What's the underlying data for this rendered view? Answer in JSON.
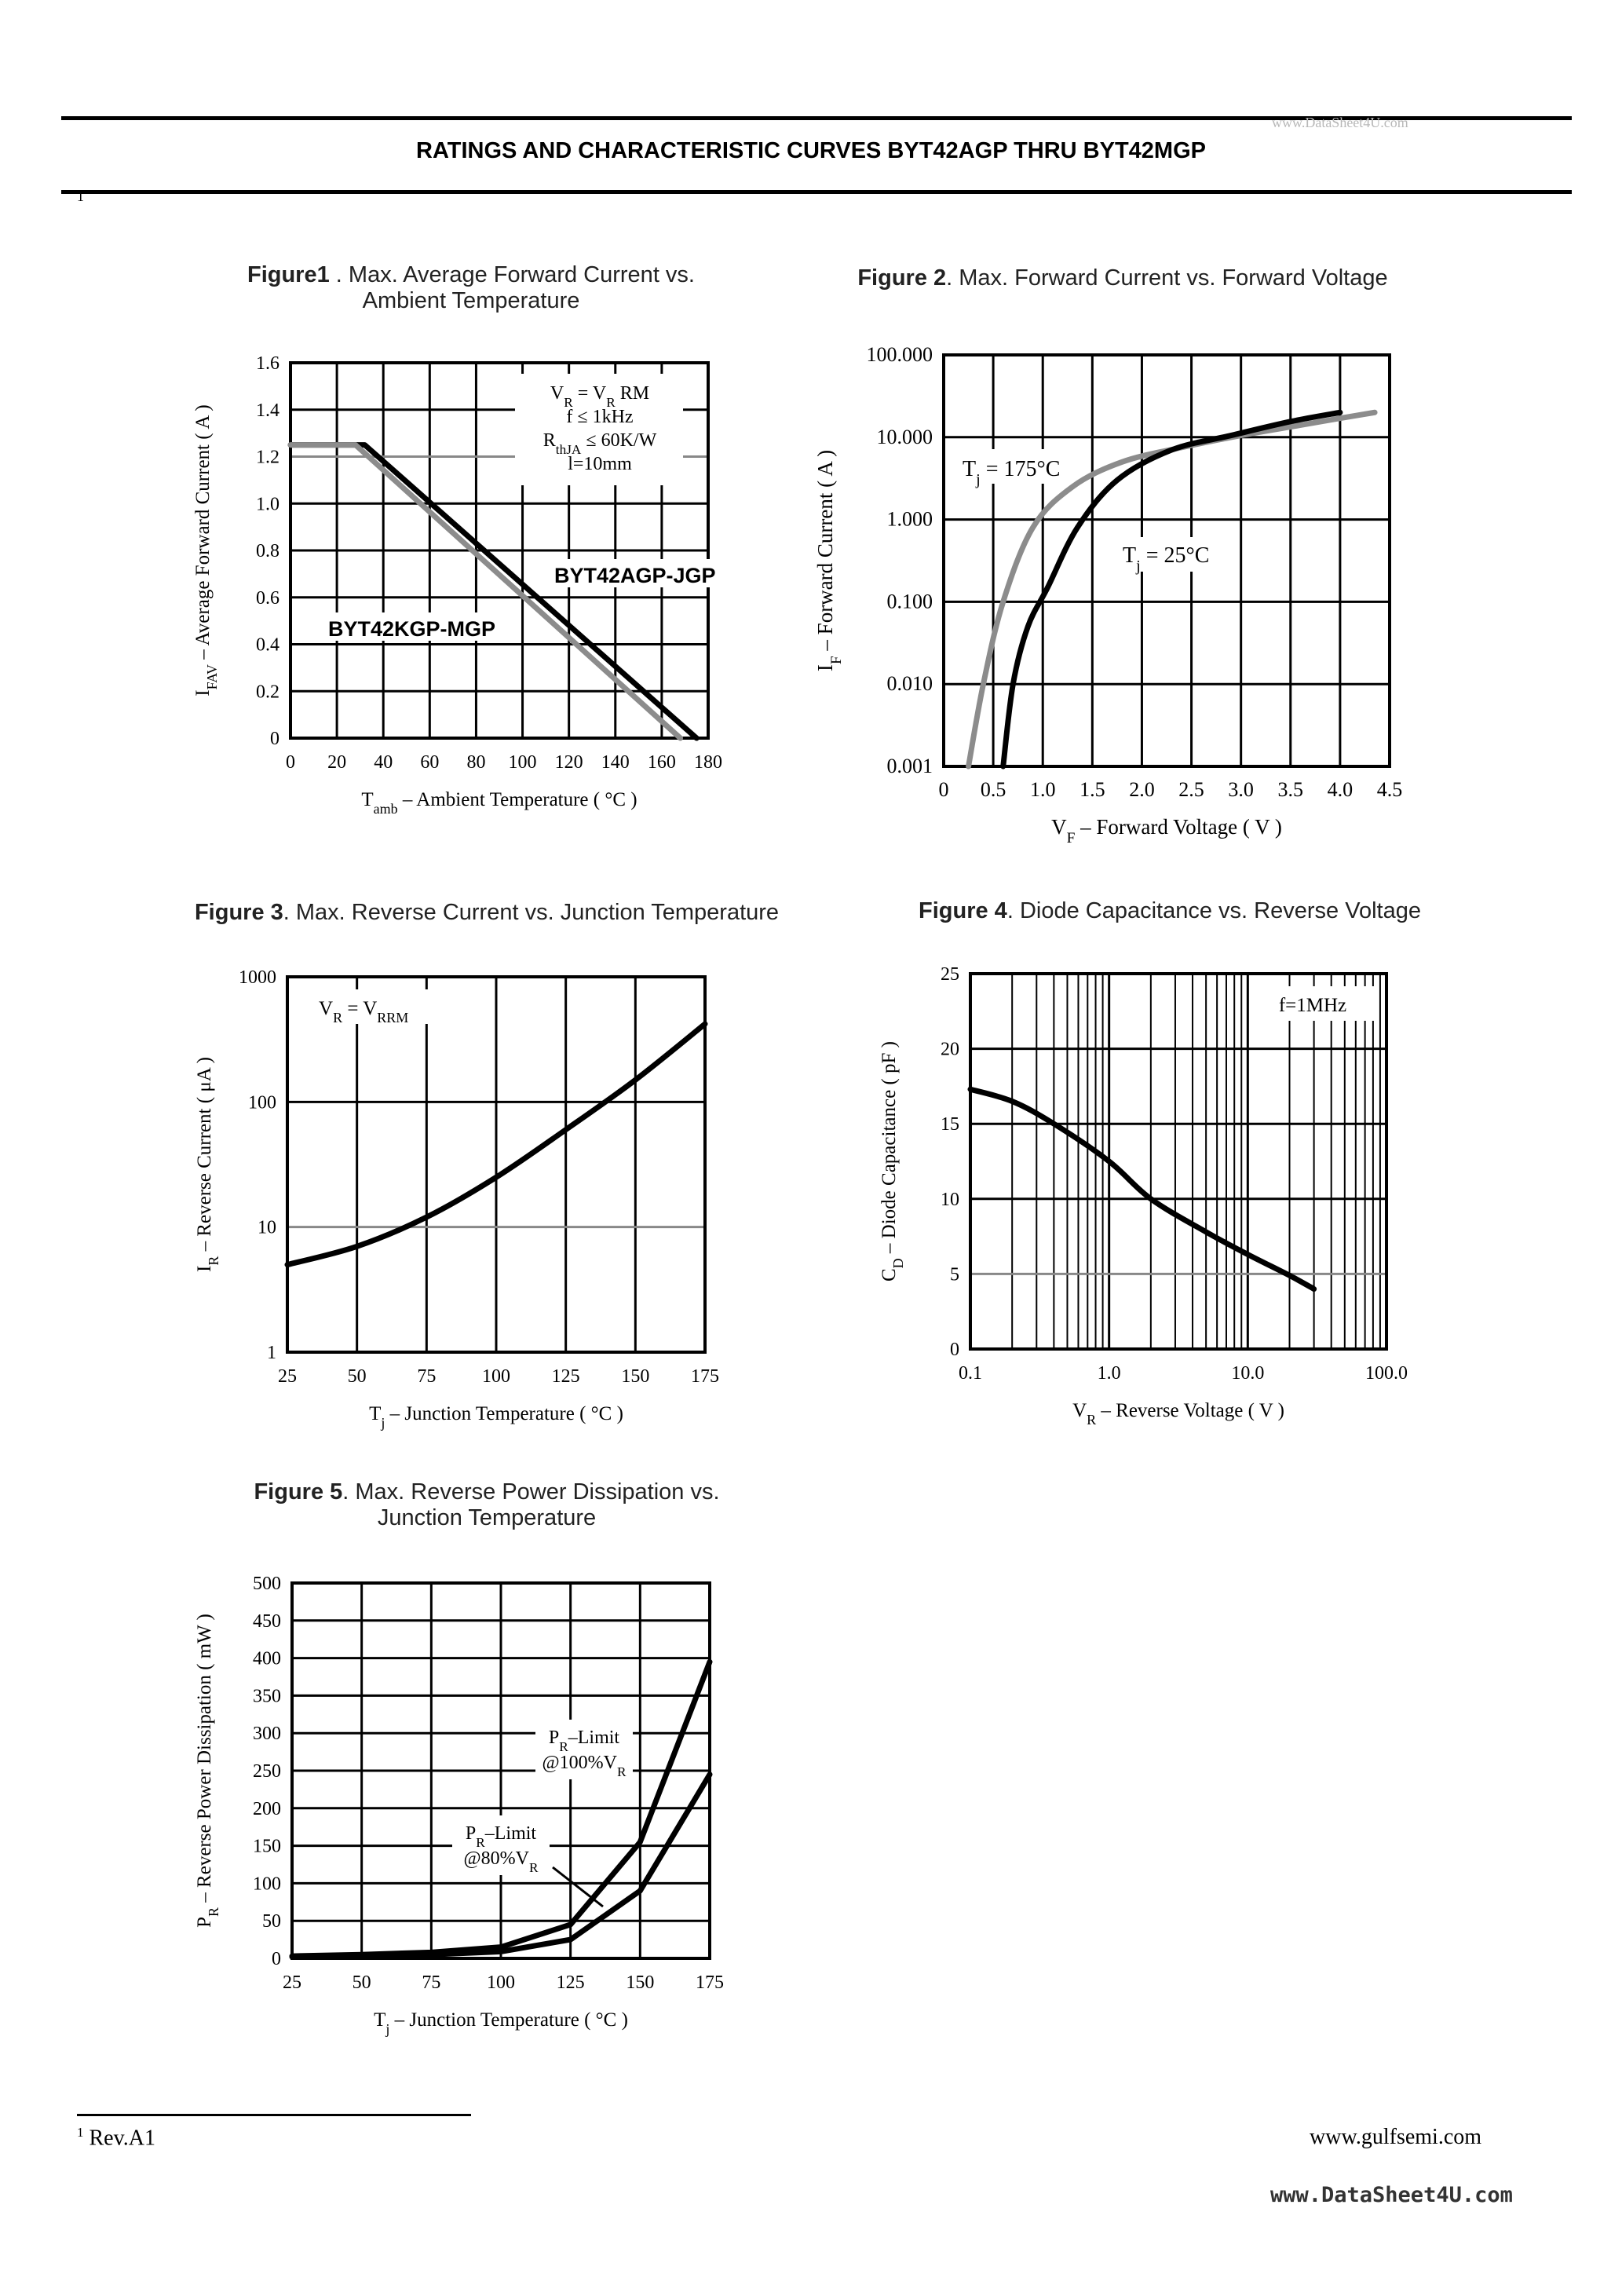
{
  "header": {
    "title": "RATINGS AND CHARACTERISTIC CURVES BYT42AGP THRU BYT42MGP",
    "watermark": "www.DataSheet4U.com",
    "page_marker": "1"
  },
  "footer": {
    "footnote_mark": "1",
    "footnote_text": "Rev.A1",
    "site": "www.gulfsemi.com",
    "watermark": "www.DataSheet4U.com"
  },
  "figures": {
    "fig1": {
      "num": "Figure1",
      "line1": ". Max. Average Forward Current vs.",
      "line2": "Ambient Temperature"
    },
    "fig2": {
      "num": "Figure 2",
      "line1": ". Max. Forward Current vs. Forward Voltage"
    },
    "fig3": {
      "num": "Figure 3",
      "line1": ". Max. Reverse Current vs. Junction Temperature"
    },
    "fig4": {
      "num": "Figure 4",
      "line1": ". Diode Capacitance vs. Reverse Voltage"
    },
    "fig5": {
      "num": "Figure 5",
      "line1": ". Max. Reverse Power Dissipation vs.",
      "line2": "Junction Temperature"
    }
  },
  "chart_data": [
    {
      "id": "fig1",
      "type": "line",
      "xlabel": "T_amb – Ambient Temperature ( °C )",
      "ylabel": "I_FAV – Average Forward Current ( A )",
      "xlim": [
        0,
        180
      ],
      "ylim": [
        0,
        1.6
      ],
      "xticks": [
        0,
        20,
        40,
        60,
        80,
        100,
        120,
        140,
        160,
        180
      ],
      "yticks": [
        0,
        0.2,
        0.4,
        0.6,
        0.8,
        1.0,
        1.2,
        1.4,
        1.6
      ],
      "xtick_labels": [
        "0",
        "20",
        "40",
        "60",
        "80",
        "100",
        "120",
        "140",
        "160",
        "180"
      ],
      "ytick_labels": [
        "0",
        "0.2",
        "0.4",
        "0.6",
        "0.8",
        "1.0",
        "1.2",
        "1.4",
        "1.6"
      ],
      "grid": true,
      "annotation": [
        "V_R = V_R RM",
        "f ≤ 1kHz",
        "R_thJA ≤ 60K/W",
        "l=10mm"
      ],
      "series": [
        {
          "name": "BYT42AGP-JGP",
          "color": "#000000",
          "x": [
            0,
            32,
            175
          ],
          "y": [
            1.25,
            1.25,
            0
          ]
        },
        {
          "name": "BYT42KGP-MGP",
          "color": "#8c8c8c",
          "x": [
            0,
            28,
            168
          ],
          "y": [
            1.25,
            1.25,
            0
          ]
        }
      ]
    },
    {
      "id": "fig2",
      "type": "line",
      "xlabel": "V_F – Forward Voltage ( V )",
      "ylabel": "I_F – Forward Current ( A )",
      "xscale": "linear",
      "yscale": "log",
      "xlim": [
        0,
        4.5
      ],
      "ylim": [
        0.001,
        100
      ],
      "xticks": [
        0,
        0.5,
        1.0,
        1.5,
        2.0,
        2.5,
        3.0,
        3.5,
        4.0,
        4.5
      ],
      "yticks": [
        0.001,
        0.01,
        0.1,
        1,
        10,
        100
      ],
      "xtick_labels": [
        "0",
        "0.5",
        "1.0",
        "1.5",
        "2.0",
        "2.5",
        "3.0",
        "3.5",
        "4.0",
        "4.5"
      ],
      "ytick_labels": [
        "0.001",
        "0.010",
        "0.100",
        "1.000",
        "10.000",
        "100.000"
      ],
      "grid": true,
      "series": [
        {
          "name": "T_j = 175°C",
          "color": "#8c8c8c",
          "x": [
            0.25,
            0.4,
            0.6,
            0.9,
            1.3,
            1.8,
            2.4,
            3.0,
            3.6,
            4.0,
            4.35
          ],
          "y": [
            0.001,
            0.01,
            0.1,
            0.8,
            2.5,
            5.0,
            7.5,
            10.5,
            14,
            17,
            20
          ]
        },
        {
          "name": "T_j = 25°C",
          "color": "#000000",
          "x": [
            0.6,
            0.7,
            0.85,
            1.05,
            1.35,
            1.75,
            2.3,
            2.9,
            3.5,
            4.0
          ],
          "y": [
            0.001,
            0.01,
            0.05,
            0.15,
            0.8,
            3.0,
            7.0,
            10.5,
            15.5,
            20
          ]
        }
      ]
    },
    {
      "id": "fig3",
      "type": "line",
      "xlabel": "T_j – Junction Temperature ( °C )",
      "ylabel": "I_R – Reverse Current ( μA )",
      "yscale": "log",
      "xlim": [
        25,
        175
      ],
      "ylim": [
        1,
        1000
      ],
      "xticks": [
        25,
        50,
        75,
        100,
        125,
        150,
        175
      ],
      "yticks": [
        1,
        10,
        100,
        1000
      ],
      "xtick_labels": [
        "25",
        "50",
        "75",
        "100",
        "125",
        "150",
        "175"
      ],
      "ytick_labels": [
        "1",
        "10",
        "100",
        "1000"
      ],
      "grid": true,
      "annotation": [
        "V_R = V_RRM"
      ],
      "series": [
        {
          "name": "",
          "color": "#000000",
          "x": [
            25,
            50,
            75,
            100,
            125,
            150,
            175
          ],
          "y": [
            5,
            7,
            12,
            25,
            60,
            150,
            420
          ]
        }
      ]
    },
    {
      "id": "fig4",
      "type": "line",
      "xlabel": "V_R – Reverse Voltage ( V )",
      "ylabel": "C_D – Diode Capacitance ( pF )",
      "xscale": "log",
      "xlim": [
        0.1,
        100
      ],
      "ylim": [
        0,
        25
      ],
      "xticks": [
        0.1,
        1,
        10,
        100
      ],
      "yticks": [
        0,
        5,
        10,
        15,
        20,
        25
      ],
      "xtick_labels": [
        "0.1",
        "1.0",
        "10.0",
        "100.0"
      ],
      "ytick_labels": [
        "0",
        "5",
        "10",
        "15",
        "20",
        "25"
      ],
      "grid": true,
      "annotation": [
        "f=1MHz"
      ],
      "series": [
        {
          "name": "",
          "color": "#000000",
          "x": [
            0.1,
            0.2,
            0.4,
            1.0,
            2.0,
            5.0,
            10.0,
            20.0,
            30.0
          ],
          "y": [
            17.3,
            16.5,
            15.0,
            12.5,
            10.0,
            7.8,
            6.3,
            4.9,
            4.0
          ]
        }
      ]
    },
    {
      "id": "fig5",
      "type": "line",
      "xlabel": "T_j – Junction Temperature ( °C )",
      "ylabel": "P_R – Reverse Power Dissipation ( mW )",
      "xlim": [
        25,
        175
      ],
      "ylim": [
        0,
        500
      ],
      "xticks": [
        25,
        50,
        75,
        100,
        125,
        150,
        175
      ],
      "yticks": [
        0,
        50,
        100,
        150,
        200,
        250,
        300,
        350,
        400,
        450,
        500
      ],
      "xtick_labels": [
        "25",
        "50",
        "75",
        "100",
        "125",
        "150",
        "175"
      ],
      "ytick_labels": [
        "0",
        "50",
        "100",
        "150",
        "200",
        "250",
        "300",
        "350",
        "400",
        "450",
        "500"
      ],
      "grid": true,
      "series": [
        {
          "name": "P_R–Limit @100%V_R",
          "color": "#000000",
          "x": [
            25,
            50,
            75,
            100,
            125,
            150,
            175
          ],
          "y": [
            3,
            5,
            8,
            15,
            45,
            155,
            395
          ]
        },
        {
          "name": "P_R–Limit @80%V_R",
          "color": "#000000",
          "x": [
            25,
            50,
            75,
            100,
            125,
            150,
            175
          ],
          "y": [
            2,
            3,
            5,
            9,
            25,
            90,
            245
          ]
        }
      ]
    }
  ]
}
